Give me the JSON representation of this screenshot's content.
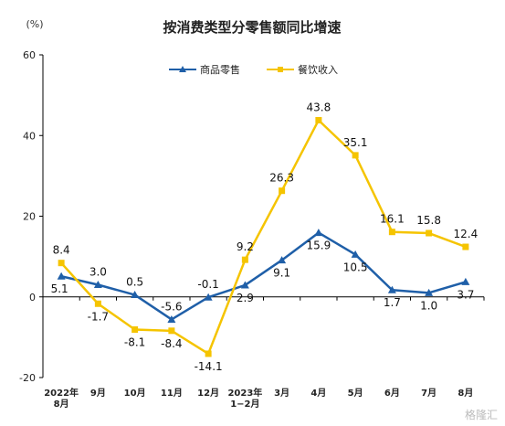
{
  "chart_data": {
    "type": "line",
    "title": "按消费类型分零售额同比增速",
    "unit_label": "(%)",
    "categories": [
      [
        "2022年",
        "8月"
      ],
      [
        "9月"
      ],
      [
        "10月"
      ],
      [
        "11月"
      ],
      [
        "12月"
      ],
      [
        "2023年",
        "1−2月"
      ],
      [
        "3月"
      ],
      [
        "4月"
      ],
      [
        "5月"
      ],
      [
        "6月"
      ],
      [
        "7月"
      ],
      [
        "8月"
      ]
    ],
    "series": [
      {
        "name": "商品零售",
        "color": "#1f5fa8",
        "marker": "triangle",
        "values": [
          5.1,
          3.0,
          0.5,
          -5.6,
          -0.1,
          2.9,
          9.1,
          15.9,
          10.5,
          1.7,
          1.0,
          3.7
        ],
        "labels": [
          "5.1",
          "3.0",
          "0.5",
          "-5.6",
          "-0.1",
          "2.9",
          "9.1",
          "15.9",
          "10.5",
          "1.7",
          "1.0",
          "3.7"
        ]
      },
      {
        "name": "餐饮收入",
        "color": "#f5c400",
        "marker": "square",
        "values": [
          8.4,
          -1.7,
          -8.1,
          -8.4,
          -14.1,
          9.2,
          26.3,
          43.8,
          35.1,
          16.1,
          15.8,
          12.4
        ],
        "labels": [
          "8.4",
          "-1.7",
          "-8.1",
          "-8.4",
          "-14.1",
          "9.2",
          "26.3",
          "43.8",
          "35.1",
          "16.1",
          "15.8",
          "12.4"
        ]
      }
    ],
    "ylim": [
      -20,
      60
    ],
    "yticks": [
      -20,
      0,
      20,
      40,
      60
    ],
    "grid": false,
    "legend_position": "top-center"
  },
  "watermark": "格隆汇"
}
